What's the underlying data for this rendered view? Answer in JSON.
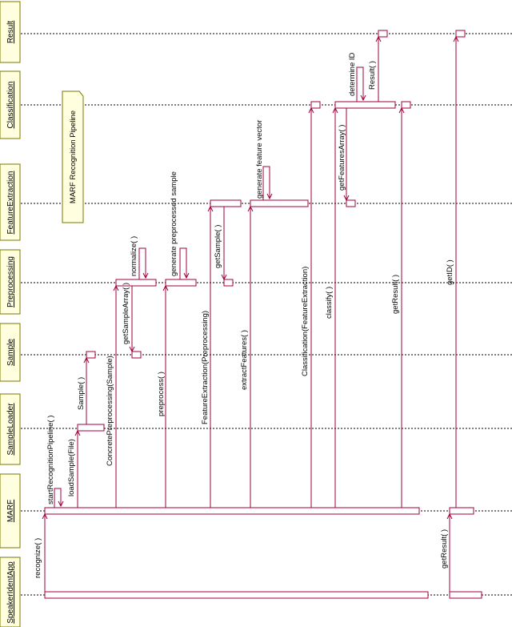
{
  "diagram": {
    "note": "MARF Recognition Pipeline",
    "objects": [
      "Result",
      "Classification",
      "FeatureExtraction",
      "Preprocessing",
      "Sample",
      "SampleLoader",
      "MARF",
      "SpeakerIdentApp"
    ],
    "messages": [
      "recognize( )",
      "startRecognitionPipeline( )",
      "loadSample(File)",
      "Sample( )",
      "ConcretePreprocessing(Sample)",
      "getSampleArray( )",
      "normalize( )",
      "preprocess( )",
      "generate preprocessed sample",
      "FeatureExtraction(Preprocessing)",
      "getSample( )",
      "extractFeatures( )",
      "generate feature vector",
      "Classification(FeatureExtraction)",
      "classify( )",
      "getFeaturesArray( )",
      "determine ID",
      "Result( )",
      "getResult( )",
      "getResult( )",
      "getID( )"
    ]
  }
}
